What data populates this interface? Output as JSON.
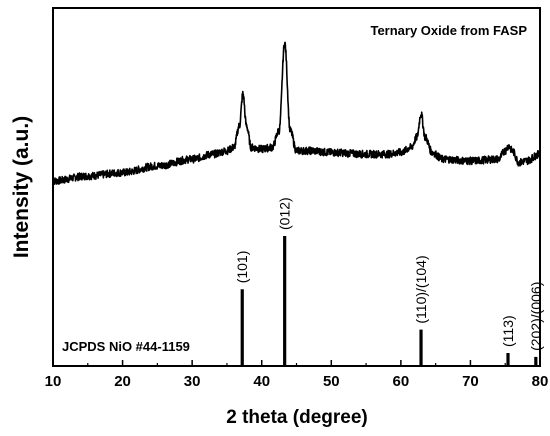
{
  "chart_data": {
    "type": "line",
    "xlabel": "2 theta (degree)",
    "ylabel": "Intensity (a.u.)",
    "xlim": [
      10,
      80
    ],
    "x_ticks": [
      10,
      20,
      30,
      40,
      50,
      60,
      70,
      80
    ],
    "grid": false,
    "series": [
      {
        "name": "Ternary Oxide from FASP",
        "x": [
          10,
          15,
          20,
          25,
          30,
          33,
          35,
          36,
          36.8,
          37.3,
          37.8,
          38.5,
          40,
          41.5,
          42.5,
          43.3,
          44.1,
          45,
          47,
          50,
          55,
          58,
          60,
          61.5,
          62.3,
          62.9,
          63.5,
          64.5,
          66,
          70,
          74,
          75,
          75.5,
          76,
          77,
          78,
          80
        ],
        "y": [
          0.0,
          0.03,
          0.05,
          0.09,
          0.13,
          0.16,
          0.18,
          0.2,
          0.33,
          0.52,
          0.33,
          0.2,
          0.19,
          0.2,
          0.3,
          0.82,
          0.3,
          0.18,
          0.18,
          0.17,
          0.16,
          0.16,
          0.17,
          0.2,
          0.26,
          0.4,
          0.26,
          0.17,
          0.13,
          0.12,
          0.13,
          0.18,
          0.21,
          0.18,
          0.11,
          0.12,
          0.16
        ]
      }
    ],
    "reference": {
      "name": "JCPDS NiO #44-1159",
      "peaks": [
        {
          "x": 37.2,
          "value": 0.59,
          "label": "(101)"
        },
        {
          "x": 43.3,
          "value": 1.0,
          "label": "(012)"
        },
        {
          "x": 62.9,
          "value": 0.28,
          "label": "(110)/(104)"
        },
        {
          "x": 75.4,
          "value": 0.1,
          "label": "(113)"
        },
        {
          "x": 79.4,
          "value": 0.07,
          "label": "(202)/(006)"
        }
      ]
    }
  }
}
